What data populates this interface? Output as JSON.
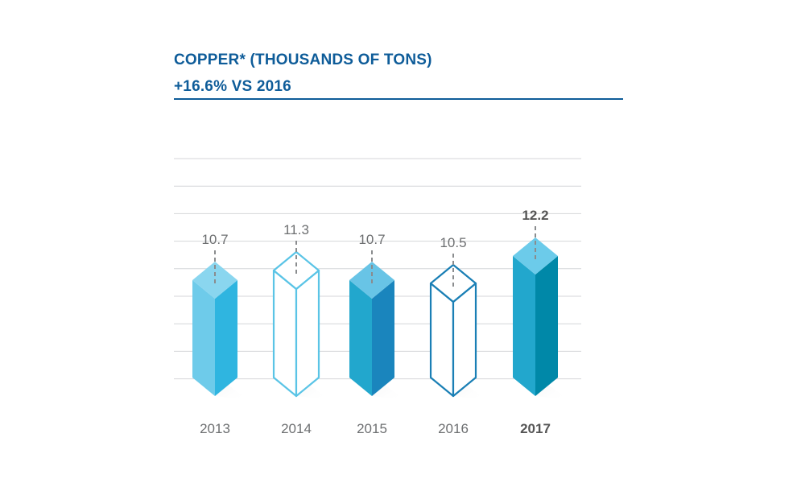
{
  "header": {
    "title": "COPPER* (THOUSANDS OF TONS)",
    "subtitle": "+16.6% VS 2016"
  },
  "chart_data": {
    "type": "bar",
    "title": "COPPER* (THOUSANDS OF TONS)",
    "subtitle": "+16.6% VS 2016",
    "categories": [
      "2013",
      "2014",
      "2015",
      "2016",
      "2017"
    ],
    "values": [
      10.7,
      11.3,
      10.7,
      10.5,
      12.2
    ],
    "value_labels": [
      "10.7",
      "11.3",
      "10.7",
      "10.5",
      "12.2"
    ],
    "highlighted_category": "2017",
    "bar_styles": [
      "filled",
      "outline",
      "filled",
      "outline",
      "filled"
    ],
    "bar_colors": [
      {
        "front": "#6ecbea",
        "side": "#2fb5e0",
        "top": "#8ad6ef"
      },
      {
        "stroke": "#5ac4e6"
      },
      {
        "front": "#22a7cd",
        "side": "#1a85bd",
        "top": "#68c4e6"
      },
      {
        "stroke": "#1a7fb5"
      },
      {
        "front": "#22a7cd",
        "side": "#0088a8",
        "top": "#6ccbea"
      }
    ],
    "grid": true,
    "xlabel": "",
    "ylabel": ""
  }
}
